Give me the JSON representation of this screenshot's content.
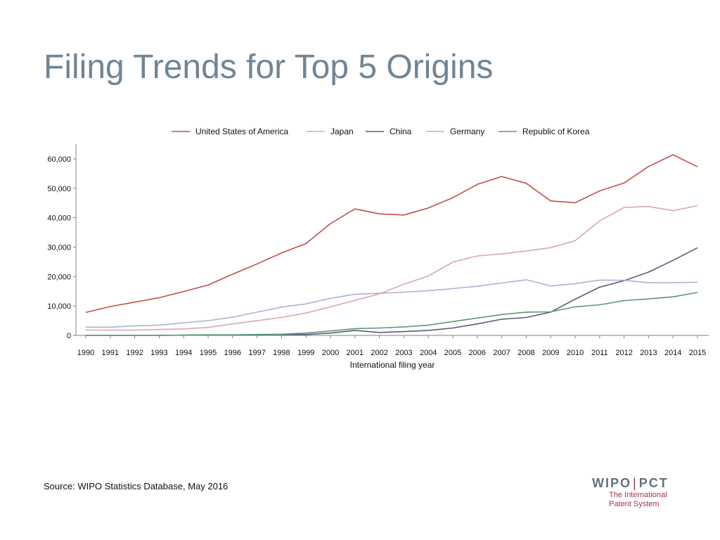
{
  "slide": {
    "title": "Filing Trends for Top 5 Origins",
    "source": "Source:  WIPO Statistics Database, May 2016"
  },
  "logo": {
    "left": "WIPO",
    "right": "PCT",
    "tagline_1": "The International",
    "tagline_2": "Patent System"
  },
  "chart_data": {
    "type": "line",
    "title": "",
    "xlabel": "International filing year",
    "ylabel": "",
    "ylim": [
      0,
      65000
    ],
    "yticks": [
      0,
      10000,
      20000,
      30000,
      40000,
      50000,
      60000
    ],
    "ytick_labels": [
      "0",
      "10,000",
      "20,000",
      "30,000",
      "40,000",
      "50,000",
      "60,000"
    ],
    "grid": false,
    "legend_position": "top",
    "x": [
      "1990",
      "1991",
      "1992",
      "1993",
      "1994",
      "1995",
      "1996",
      "1997",
      "1998",
      "1999",
      "2000",
      "2001",
      "2002",
      "2003",
      "2004",
      "2005",
      "2006",
      "2007",
      "2008",
      "2009",
      "2010",
      "2011",
      "2012",
      "2013",
      "2014",
      "2015"
    ],
    "series": [
      {
        "name": "United States of America",
        "color": "#c0504d",
        "values": [
          7800,
          9800,
          11300,
          12800,
          14900,
          17100,
          20800,
          24300,
          28000,
          31200,
          38000,
          43000,
          41300,
          40900,
          43300,
          46800,
          51300,
          54000,
          51700,
          45700,
          45100,
          49100,
          51800,
          57400,
          61400,
          57300
        ]
      },
      {
        "name": "Japan",
        "color": "#d9a7b0",
        "values": [
          1800,
          1800,
          1800,
          2000,
          2200,
          2700,
          3900,
          5000,
          6100,
          7600,
          9700,
          11900,
          14100,
          17400,
          20200,
          24900,
          27000,
          27700,
          28700,
          29800,
          32200,
          38900,
          43500,
          43800,
          42400,
          44100
        ]
      },
      {
        "name": "China",
        "color": "#5b5b7e",
        "values": [
          0,
          0,
          0,
          0,
          100,
          100,
          100,
          200,
          300,
          300,
          800,
          1700,
          1000,
          1300,
          1700,
          2500,
          3900,
          5500,
          6100,
          7900,
          12300,
          16400,
          18600,
          21500,
          25500,
          29800
        ]
      },
      {
        "name": "Germany",
        "color": "#a9b3d3",
        "values": [
          2800,
          2800,
          3200,
          3500,
          4300,
          5000,
          6200,
          7900,
          9600,
          10700,
          12600,
          14000,
          14300,
          14700,
          15200,
          15900,
          16700,
          17800,
          18900,
          16800,
          17600,
          18800,
          18700,
          17900,
          17900,
          18100
        ]
      },
      {
        "name": "Republic of Korea",
        "color": "#5a9a78",
        "values": [
          0,
          0,
          0,
          0,
          100,
          200,
          200,
          300,
          400,
          800,
          1500,
          2300,
          2500,
          2900,
          3500,
          4700,
          5900,
          7100,
          7900,
          8000,
          9700,
          10400,
          11800,
          12400,
          13100,
          14600
        ]
      }
    ]
  }
}
